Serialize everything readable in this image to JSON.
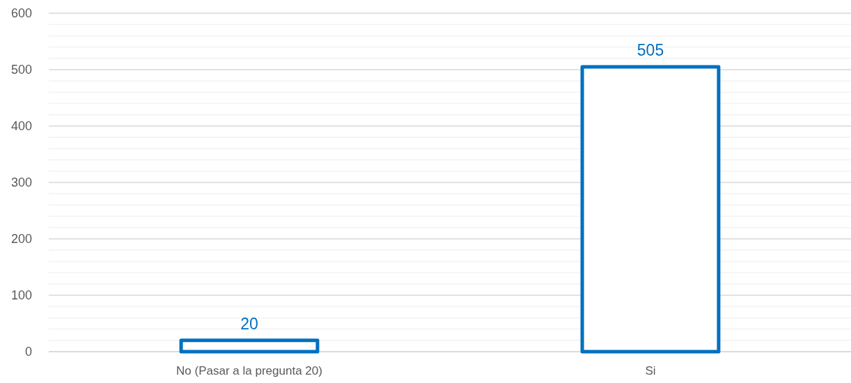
{
  "chart_data": {
    "type": "bar",
    "categories": [
      "No (Pasar a la pregunta 20)",
      "Si"
    ],
    "values": [
      20,
      505
    ],
    "color": "#0070c0",
    "data_labels": true,
    "ylim": [
      0,
      600
    ],
    "yticks": [
      0,
      {
        "value": 20,
        "label": null
      },
      {
        "value": 40,
        "label": null
      },
      {
        "value": 60,
        "label": null
      },
      {
        "value": 80,
        "label": null
      },
      100,
      {
        "value": 120,
        "label": null
      },
      {
        "value": 140,
        "label": null
      },
      {
        "value": 160,
        "label": null
      },
      {
        "value": 180,
        "label": null
      },
      200,
      {
        "value": 220,
        "label": null
      },
      {
        "value": 240,
        "label": null
      },
      {
        "value": 260,
        "label": null
      },
      {
        "value": 280,
        "label": null
      },
      300,
      {
        "value": 320,
        "label": null
      },
      {
        "value": 340,
        "label": null
      },
      {
        "value": 360,
        "label": null
      },
      {
        "value": 380,
        "label": null
      },
      400,
      {
        "value": 420,
        "label": null
      },
      {
        "value": 440,
        "label": null
      },
      {
        "value": 460,
        "label": null
      },
      {
        "value": 480,
        "label": null
      },
      500,
      {
        "value": 520,
        "label": null
      },
      {
        "value": 540,
        "label": null
      },
      {
        "value": 560,
        "label": null
      },
      {
        "value": 580,
        "label": null
      },
      600
    ],
    "grid": "y"
  }
}
